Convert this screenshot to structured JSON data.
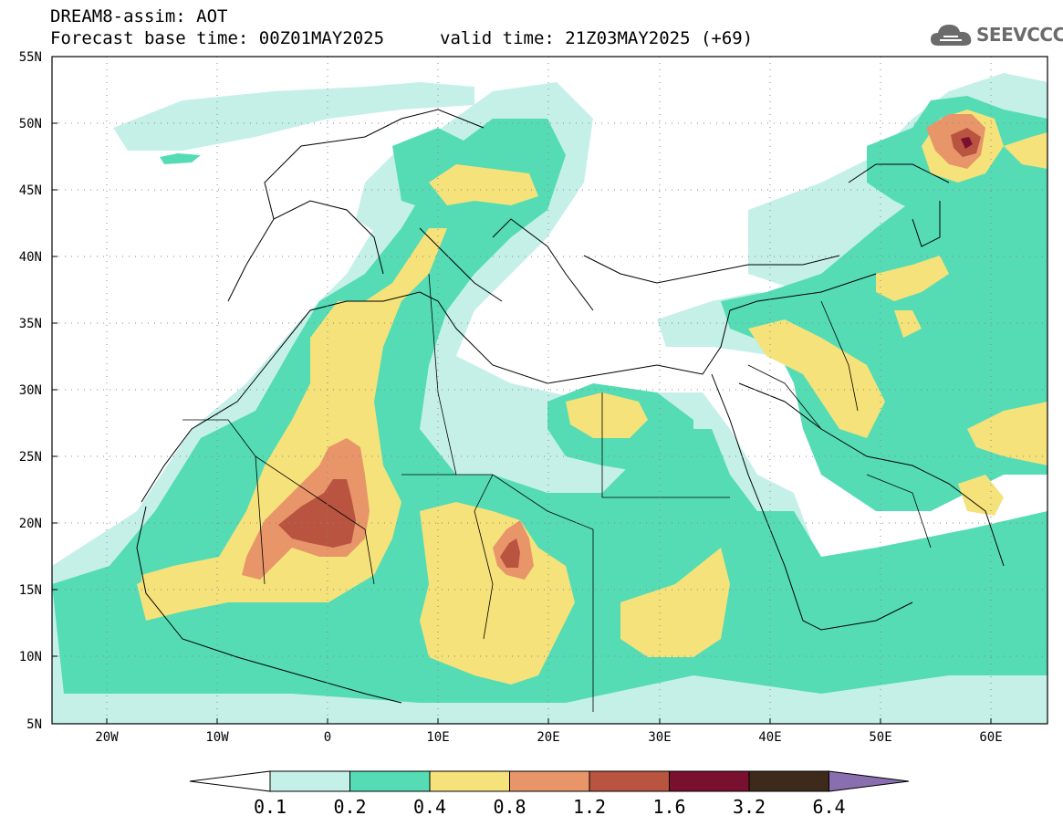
{
  "header": {
    "title": "DREAM8-assim: AOT",
    "base_time": "Forecast base time: 00Z01MAY2025",
    "valid_time": "valid time: 21Z03MAY2025 (+69)"
  },
  "logo": {
    "text": "SEEVCCC",
    "icon": "cloud-icon"
  },
  "map": {
    "lat_labels": [
      "55N",
      "50N",
      "45N",
      "40N",
      "35N",
      "30N",
      "25N",
      "20N",
      "15N",
      "10N",
      "5N"
    ],
    "lon_labels": [
      "20W",
      "10W",
      "0",
      "10E",
      "20E",
      "30E",
      "40E",
      "50E",
      "60E"
    ],
    "lat_range": [
      5,
      55
    ],
    "lon_range": [
      -25,
      65
    ],
    "grid": "dotted"
  },
  "colorbar": {
    "ticks": [
      "0.1",
      "0.2",
      "0.4",
      "0.8",
      "1.2",
      "1.6",
      "3.2",
      "6.4"
    ],
    "colors": [
      "#ffffff",
      "#c5f0e8",
      "#55dcb5",
      "#f5e27a",
      "#e8956a",
      "#b85440",
      "#7a1030",
      "#3d2a1a",
      "#8a6fb0"
    ]
  }
}
